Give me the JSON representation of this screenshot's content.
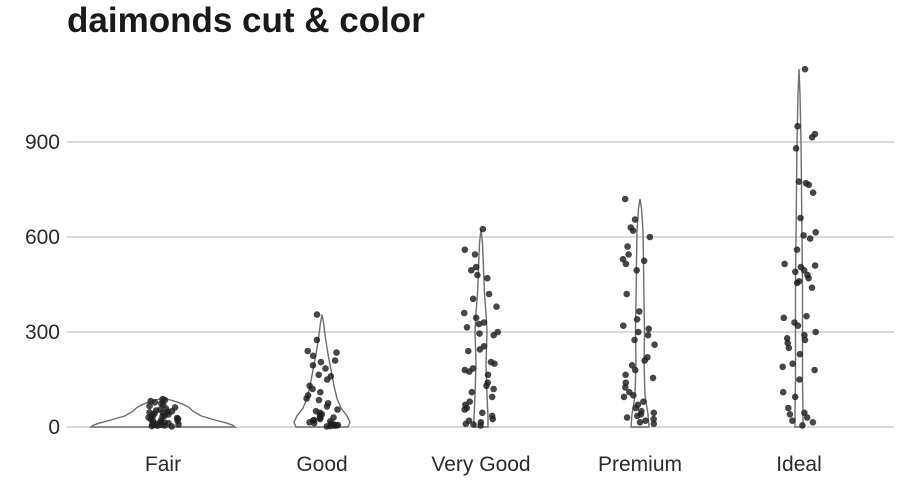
{
  "chart_data": {
    "type": "violin",
    "title": "daimonds cut & color",
    "xlabel": "",
    "ylabel": "",
    "categories": [
      "Fair",
      "Good",
      "Very Good",
      "Premium",
      "Ideal"
    ],
    "ylim": [
      0,
      1140
    ],
    "yticks": [
      0,
      300,
      600,
      900
    ],
    "grid": true,
    "colors": {
      "points": "#1e1e1e",
      "violin_outline": "#6e6e6e",
      "grid": "#c4c4c4"
    },
    "groups": [
      {
        "category": "Fair",
        "max": 90,
        "points": [
          88,
          85,
          82,
          78,
          75,
          70,
          66,
          62,
          58,
          55,
          52,
          50,
          48,
          46,
          44,
          42,
          40,
          38,
          36,
          34,
          32,
          30,
          28,
          26,
          24,
          22,
          20,
          18,
          16,
          14,
          12,
          10,
          9,
          8,
          7,
          6,
          5,
          4,
          3,
          2
        ]
      },
      {
        "category": "Good",
        "max": 355,
        "points": [
          355,
          275,
          240,
          235,
          225,
          210,
          205,
          195,
          185,
          165,
          160,
          150,
          130,
          120,
          110,
          100,
          90,
          85,
          75,
          65,
          55,
          50,
          45,
          40,
          35,
          30,
          28,
          25,
          22,
          20,
          18,
          15,
          12,
          10,
          8,
          6,
          5,
          4,
          3,
          2
        ]
      },
      {
        "category": "Very Good",
        "max": 625,
        "points": [
          625,
          560,
          545,
          505,
          495,
          480,
          470,
          420,
          405,
          380,
          360,
          345,
          330,
          325,
          315,
          300,
          295,
          290,
          255,
          245,
          240,
          205,
          200,
          185,
          180,
          175,
          165,
          140,
          130,
          120,
          110,
          95,
          80,
          70,
          60,
          55,
          45,
          35,
          25,
          20,
          15,
          10,
          8,
          5
        ]
      },
      {
        "category": "Premium",
        "max": 720,
        "points": [
          720,
          655,
          630,
          620,
          600,
          570,
          545,
          530,
          525,
          515,
          495,
          420,
          365,
          340,
          320,
          310,
          300,
          290,
          275,
          260,
          220,
          210,
          195,
          180,
          165,
          155,
          140,
          125,
          110,
          100,
          95,
          80,
          70,
          60,
          50,
          45,
          40,
          35,
          30,
          25,
          20,
          15,
          10
        ]
      },
      {
        "category": "Ideal",
        "max": 1130,
        "points": [
          1130,
          950,
          925,
          915,
          880,
          775,
          770,
          765,
          740,
          660,
          615,
          605,
          595,
          560,
          515,
          510,
          505,
          495,
          490,
          480,
          470,
          460,
          455,
          440,
          350,
          345,
          330,
          320,
          300,
          290,
          280,
          275,
          265,
          250,
          230,
          200,
          190,
          180,
          150,
          110,
          95,
          60,
          45,
          40,
          30,
          20,
          15,
          5
        ]
      }
    ]
  }
}
